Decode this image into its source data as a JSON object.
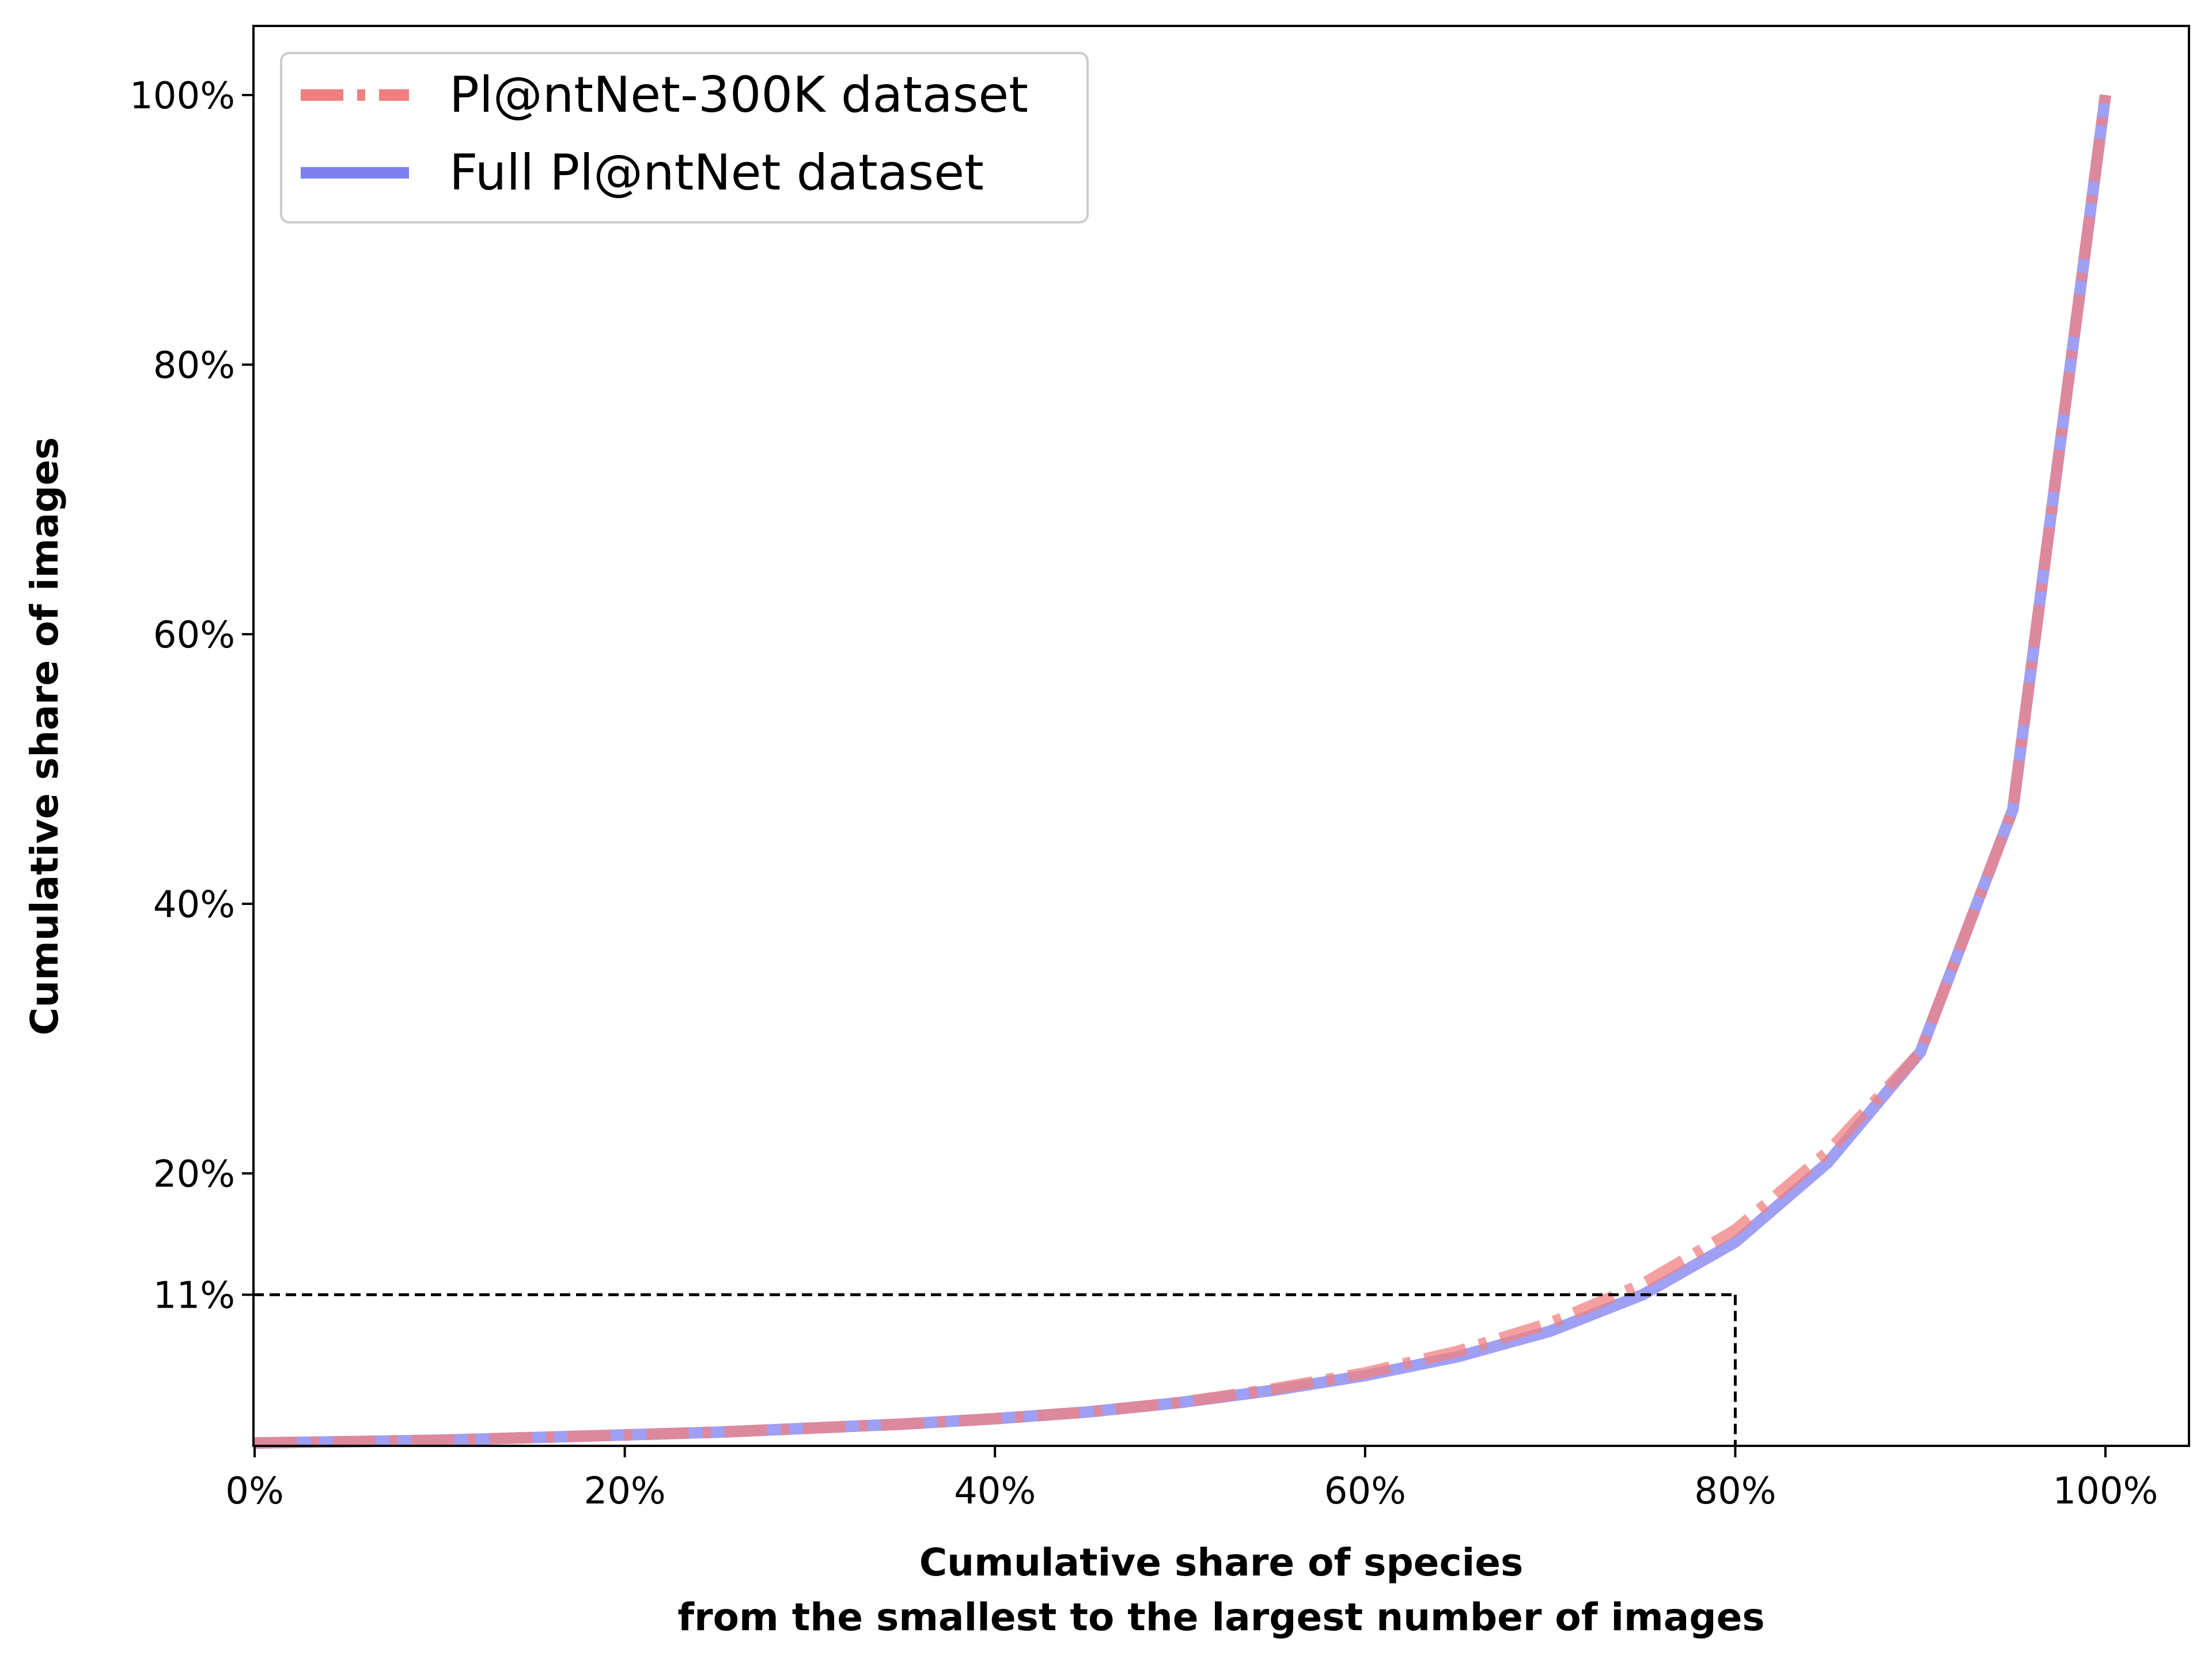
{
  "chart_data": {
    "type": "line",
    "xlabel_line1": "Cumulative share of species",
    "xlabel_line2": "from the smallest to the largest number of images",
    "ylabel": "Cumulative share of images",
    "xlim": [
      0,
      105
    ],
    "ylim": [
      0,
      105
    ],
    "x_ticks": [
      0,
      20,
      40,
      60,
      80,
      100
    ],
    "x_tick_labels": [
      "0%",
      "20%",
      "40%",
      "60%",
      "80%",
      "100%"
    ],
    "y_ticks": [
      11,
      20,
      40,
      60,
      80,
      100
    ],
    "y_tick_labels": [
      "11%",
      "20%",
      "40%",
      "60%",
      "80%",
      "100%"
    ],
    "grid": false,
    "legend_position": "top-left",
    "series": [
      {
        "name": "Pl@ntNet-300K dataset",
        "color": "#f08080",
        "style": "dash-dot",
        "x": [
          0,
          5,
          10,
          15,
          20,
          25,
          30,
          35,
          40,
          45,
          50,
          55,
          60,
          65,
          70,
          75,
          80,
          85,
          90,
          95,
          100
        ],
        "y": [
          0,
          0.1,
          0.2,
          0.4,
          0.6,
          0.8,
          1.1,
          1.4,
          1.8,
          2.3,
          3.0,
          4.0,
          5.2,
          6.8,
          8.9,
          11.8,
          15.8,
          21.6,
          29.0,
          47.0,
          100
        ]
      },
      {
        "name": "Full Pl@ntNet dataset",
        "color": "#7f7fef",
        "style": "solid",
        "x": [
          0,
          5,
          10,
          15,
          20,
          25,
          30,
          35,
          40,
          45,
          50,
          55,
          60,
          65,
          70,
          75,
          80,
          85,
          90,
          95,
          100
        ],
        "y": [
          0,
          0.1,
          0.2,
          0.4,
          0.6,
          0.8,
          1.1,
          1.4,
          1.8,
          2.3,
          3.0,
          3.9,
          5.0,
          6.4,
          8.3,
          11.0,
          14.9,
          20.8,
          29.0,
          47.0,
          100
        ]
      }
    ],
    "annotations": [
      {
        "type": "reference-lines",
        "style": "dashed",
        "color": "#000000",
        "x": 80,
        "y": 11
      }
    ]
  }
}
